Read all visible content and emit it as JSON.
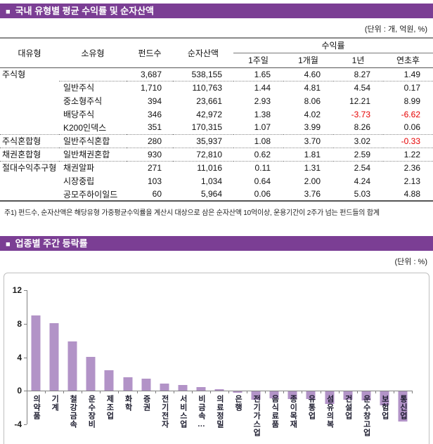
{
  "colors": {
    "header_bg": "#7B3E94",
    "negative": "#E60000",
    "bar_fill": "#B293C7",
    "axis": "#808080",
    "header_text": "#FFFFFF"
  },
  "section1": {
    "bullet": "■",
    "title": "국내 유형별 평균 수익률 및 순자산액",
    "unit": "(단위 : 개, 억원, %)",
    "table": {
      "col_headers": [
        "대유형",
        "소유형",
        "펀드수",
        "순자산액"
      ],
      "group_header": "수익률",
      "sub_headers": [
        "1주일",
        "1개월",
        "1년",
        "연초후"
      ],
      "rows": [
        {
          "major": "주식형",
          "minor": "",
          "funds": "3,687",
          "assets": "538,155",
          "returns": [
            "1.65",
            "4.60",
            "8.27",
            "1.49"
          ],
          "sep_after": true
        },
        {
          "major": "",
          "minor": "일반주식",
          "funds": "1,710",
          "assets": "110,763",
          "returns": [
            "1.44",
            "4.81",
            "4.54",
            "0.17"
          ]
        },
        {
          "major": "",
          "minor": "중소형주식",
          "funds": "394",
          "assets": "23,661",
          "returns": [
            "2.93",
            "8.06",
            "12.21",
            "8.99"
          ]
        },
        {
          "major": "",
          "minor": "배당주식",
          "funds": "346",
          "assets": "42,972",
          "returns": [
            "1.38",
            "4.02",
            "-3.73",
            "-6.62"
          ]
        },
        {
          "major": "",
          "minor": "K200인덱스",
          "funds": "351",
          "assets": "170,315",
          "returns": [
            "1.07",
            "3.99",
            "8.26",
            "0.06"
          ]
        },
        {
          "major": "주식혼합형",
          "minor": "일반주식혼합",
          "funds": "280",
          "assets": "35,937",
          "returns": [
            "1.08",
            "3.70",
            "3.02",
            "-0.33"
          ],
          "sep_before": true
        },
        {
          "major": "채권혼합형",
          "minor": "일반채권혼합",
          "funds": "930",
          "assets": "72,810",
          "returns": [
            "0.62",
            "1.81",
            "2.59",
            "1.22"
          ],
          "sep_before": true
        },
        {
          "major": "절대수익추구형",
          "minor": "채권알파",
          "funds": "271",
          "assets": "11,016",
          "returns": [
            "0.11",
            "1.31",
            "2.54",
            "2.36"
          ],
          "sep_before": true
        },
        {
          "major": "",
          "minor": "시장중립",
          "funds": "103",
          "assets": "1,034",
          "returns": [
            "0.64",
            "2.00",
            "4.24",
            "2.13"
          ]
        },
        {
          "major": "",
          "minor": "공모주하이일드",
          "funds": "60",
          "assets": "5,964",
          "returns": [
            "0.06",
            "3.76",
            "5.03",
            "4.88"
          ]
        }
      ]
    },
    "footnote": "주1) 펀드수, 순자산액은 해당유형 가중평균수익률을 계산시 대상으로 삼은 순자산액 10억이상, 운용기간이 2주가 넘는 펀드들의 합계"
  },
  "section2": {
    "bullet": "■",
    "title": "업종별 주간 등락률",
    "unit": "(단위 : %)"
  },
  "chart_data": {
    "type": "bar",
    "title": "업종별 주간 등락률",
    "unit": "%",
    "categories": [
      "의약품",
      "기계",
      "철강금속",
      "운수장비",
      "제조업",
      "화학",
      "증권",
      "전기전자",
      "서비스업",
      "비금속…",
      "의료정밀",
      "은행",
      "전기가스업",
      "음식료품",
      "종이목재",
      "유통업",
      "섬유의복",
      "건설업",
      "운수창고업",
      "보험업",
      "통신업"
    ],
    "values": [
      9.0,
      8.0,
      5.9,
      4.0,
      2.4,
      1.6,
      1.4,
      0.8,
      0.7,
      0.4,
      0.2,
      -0.2,
      -1.0,
      -0.8,
      -0.9,
      -0.9,
      -1.5,
      -1.0,
      -1.1,
      -1.7,
      -3.6
    ],
    "ylim": [
      -4,
      12
    ],
    "yticks": [
      12,
      8,
      4,
      0,
      -4
    ],
    "xlabel": "",
    "ylabel": "",
    "grid": false,
    "legend": false,
    "bar_color": "#B293C7"
  }
}
